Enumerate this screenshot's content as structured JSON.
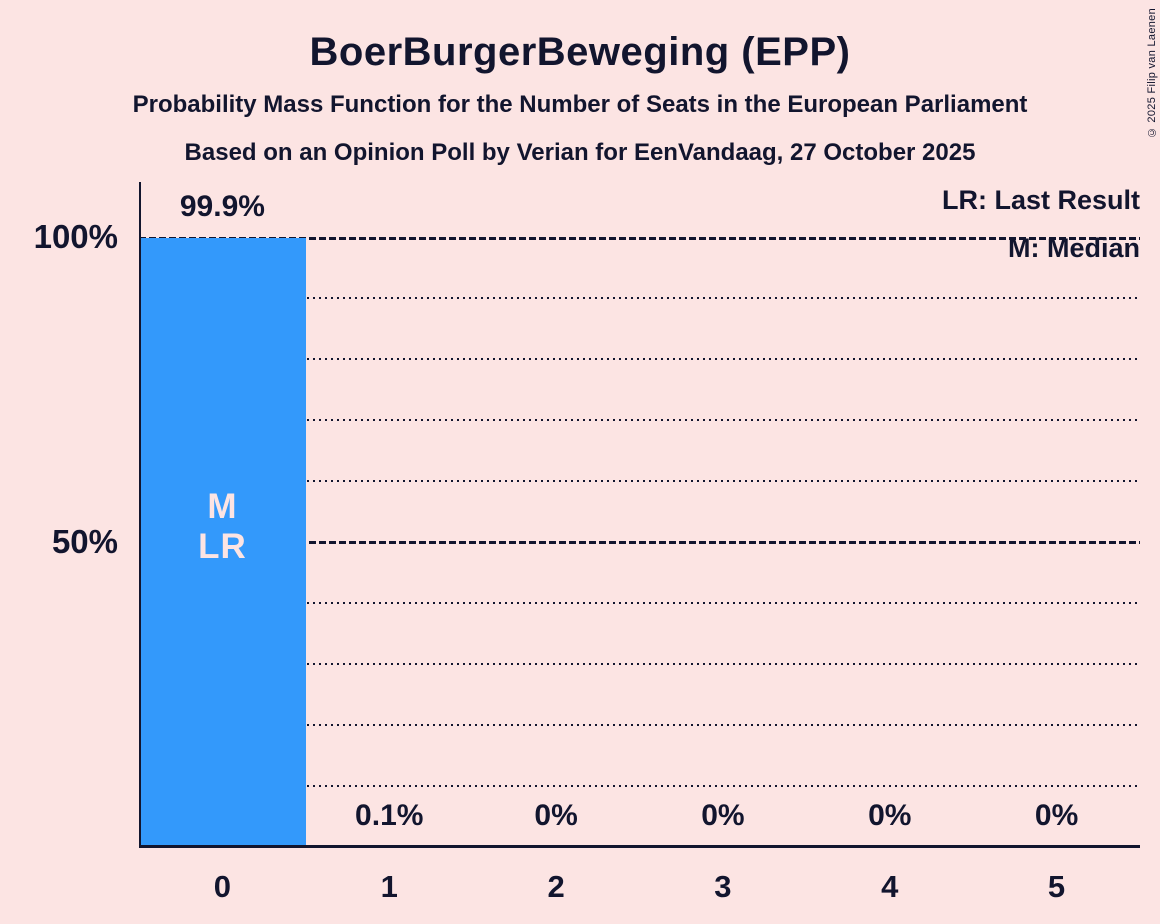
{
  "title": "BoerBurgerBeweging (EPP)",
  "subtitle": "Probability Mass Function for the Number of Seats in the European Parliament",
  "source_line": "Based on an Opinion Poll by Verian for EenVandaag, 27 October 2025",
  "copyright": "© 2025 Filip van Laenen",
  "legend": {
    "last_result": "LR: Last Result",
    "median": "M: Median"
  },
  "y_axis": {
    "labels": [
      "100%",
      "50%"
    ],
    "values": [
      100,
      50
    ]
  },
  "colors": {
    "background": "#fce4e3",
    "bar": "#3399fb",
    "text": "#12152e",
    "bar_text": "#fce4e3"
  },
  "chart_data": {
    "type": "bar",
    "title": "Probability mass function for the number of seats of BoerBurgerBeweging (EPP) in the European Parliament",
    "categories": [
      "0",
      "1",
      "2",
      "3",
      "4",
      "5"
    ],
    "values": [
      99.9,
      0.1,
      0,
      0,
      0,
      0
    ],
    "bar_labels": [
      "99.9%",
      "0.1%",
      "0%",
      "0%",
      "0%",
      "0%"
    ],
    "xlabel": "",
    "ylabel": "",
    "ylim": [
      0,
      100
    ],
    "gridline_step_pct": 10,
    "solid_gridlines_pct": [
      100,
      50
    ],
    "legend_position": "top-right",
    "median_marker": "M",
    "last_result_marker": "LR",
    "median_seat": "0",
    "last_result_seat": "0"
  }
}
